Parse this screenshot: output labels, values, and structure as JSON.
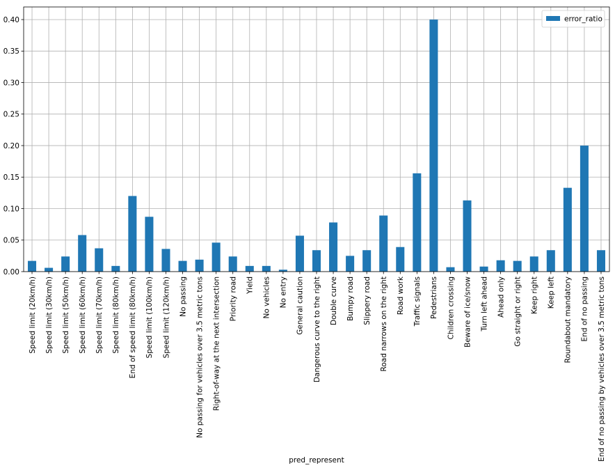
{
  "chart_data": {
    "type": "bar",
    "xlabel": "pred_represent",
    "ylabel": "",
    "ylim": [
      0,
      0.42
    ],
    "yticks": [
      "0.00",
      "0.05",
      "0.10",
      "0.15",
      "0.20",
      "0.25",
      "0.30",
      "0.35",
      "0.40"
    ],
    "grid": true,
    "legend_position": "top-right",
    "bar_color": "#1f77b4",
    "categories": [
      "Speed limit (20km/h)",
      "Speed limit (30km/h)",
      "Speed limit (50km/h)",
      "Speed limit (60km/h)",
      "Speed limit (70km/h)",
      "Speed limit (80km/h)",
      "End of speed limit (80km/h)",
      "Speed limit (100km/h)",
      "Speed limit (120km/h)",
      "No passing",
      "No passing for vehicles over 3.5 metric tons",
      "Right-of-way at the next intersection",
      "Priority road",
      "Yield",
      "No vehicles",
      "No entry",
      "General caution",
      "Dangerous curve to the right",
      "Double curve",
      "Bumpy road",
      "Slippery road",
      "Road narrows on the right",
      "Road work",
      "Traffic signals",
      "Pedestrians",
      "Children crossing",
      "Beware of ice/snow",
      "Turn left ahead",
      "Ahead only",
      "Go straight or right",
      "Keep right",
      "Keep left",
      "Roundabout mandatory",
      "End of no passing",
      "End of no passing by vehicles over 3.5 metric tons"
    ],
    "series": [
      {
        "name": "error_ratio",
        "values": [
          0.017,
          0.006,
          0.024,
          0.058,
          0.037,
          0.009,
          0.12,
          0.087,
          0.036,
          0.017,
          0.019,
          0.046,
          0.024,
          0.009,
          0.009,
          0.003,
          0.057,
          0.034,
          0.078,
          0.025,
          0.034,
          0.089,
          0.039,
          0.156,
          0.4,
          0.007,
          0.113,
          0.008,
          0.018,
          0.017,
          0.024,
          0.034,
          0.133,
          0.2,
          0.034
        ]
      }
    ]
  }
}
